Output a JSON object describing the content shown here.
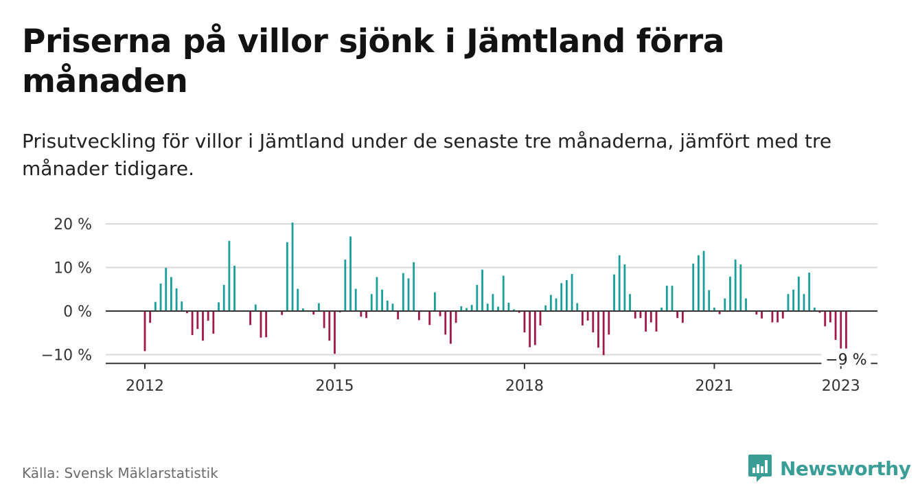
{
  "header": {
    "title": "Priserna på villor sjönk i Jämtland förra månaden",
    "subtitle": "Prisutveckling för villor i Jämtland under de senaste tre månaderna, jämfört med tre månader tidigare."
  },
  "footer": {
    "source": "Källa: Svensk Mäklarstatistik",
    "brand": "Newsworthy"
  },
  "colors": {
    "positive": "#1a9e99",
    "negative": "#a0184a",
    "grid": "#d9d9d9",
    "zero_line": "#333333",
    "brand": "#3a9e97"
  },
  "icons": {
    "brand_logo": "newsworthy-logo-icon"
  },
  "chart_data": {
    "type": "bar",
    "title": "Priserna på villor sjönk i Jämtland förra månaden",
    "subtitle": "Prisutveckling för villor i Jämtland under de senaste tre månaderna, jämfört med tre månader tidigare.",
    "xlabel": "",
    "ylabel": "",
    "ylim": [
      -12,
      21
    ],
    "yticks": [
      20,
      10,
      0,
      -10
    ],
    "ytick_labels": [
      "20 %",
      "10 %",
      "0 %",
      "−10 %"
    ],
    "xtick_labels": [
      "2012",
      "2015",
      "2018",
      "2021",
      "2023"
    ],
    "xticks_index": [
      0,
      36,
      72,
      108,
      132
    ],
    "grid": true,
    "legend": "none",
    "annotation": {
      "index": 133,
      "text": "−9 %"
    },
    "period_start": "2012-01",
    "period_end": "2023-02",
    "values": [
      -9.2,
      -2.7,
      2.1,
      6.3,
      9.9,
      7.8,
      5.2,
      2.2,
      -0.5,
      -5.5,
      -4.1,
      -6.8,
      -2.2,
      -5.2,
      2.0,
      6.0,
      16.1,
      10.4,
      0,
      0,
      -3.2,
      1.5,
      -6.1,
      -6.0,
      0,
      0,
      -0.9,
      15.8,
      20.3,
      5.1,
      0.6,
      0,
      -0.8,
      1.8,
      -3.9,
      -6.8,
      -9.8,
      -0.3,
      11.8,
      17.1,
      5.1,
      -1.3,
      -1.6,
      3.9,
      7.8,
      4.9,
      2.4,
      1.7,
      -1.9,
      8.7,
      7.5,
      11.2,
      -2.1,
      0,
      -3.2,
      4.3,
      -1.2,
      -5.4,
      -7.5,
      -2.7,
      1.1,
      0.7,
      1.4,
      6.0,
      9.5,
      1.7,
      3.9,
      1.0,
      8.1,
      1.9,
      0.4,
      -0.4,
      -4.9,
      -8.3,
      -7.8,
      -3.3,
      1.3,
      3.7,
      2.9,
      6.4,
      7.1,
      8.5,
      1.8,
      -3.3,
      -2.2,
      -4.9,
      -8.4,
      -10.1,
      -5.4,
      8.4,
      12.8,
      10.7,
      3.9,
      -1.7,
      -1.6,
      -4.7,
      -2.6,
      -4.7,
      0.8,
      5.8,
      5.8,
      -1.6,
      -2.7,
      0,
      10.9,
      12.8,
      13.8,
      4.8,
      0.8,
      -0.7,
      2.9,
      7.9,
      11.8,
      10.7,
      2.9,
      0,
      -0.8,
      -1.7,
      0,
      -2.6,
      -2.6,
      -1.7,
      3.9,
      4.9,
      7.9,
      3.9,
      8.8,
      0.8,
      -0.4,
      -3.5,
      -2.6,
      -6.6,
      -8.6,
      -8.6
    ]
  }
}
